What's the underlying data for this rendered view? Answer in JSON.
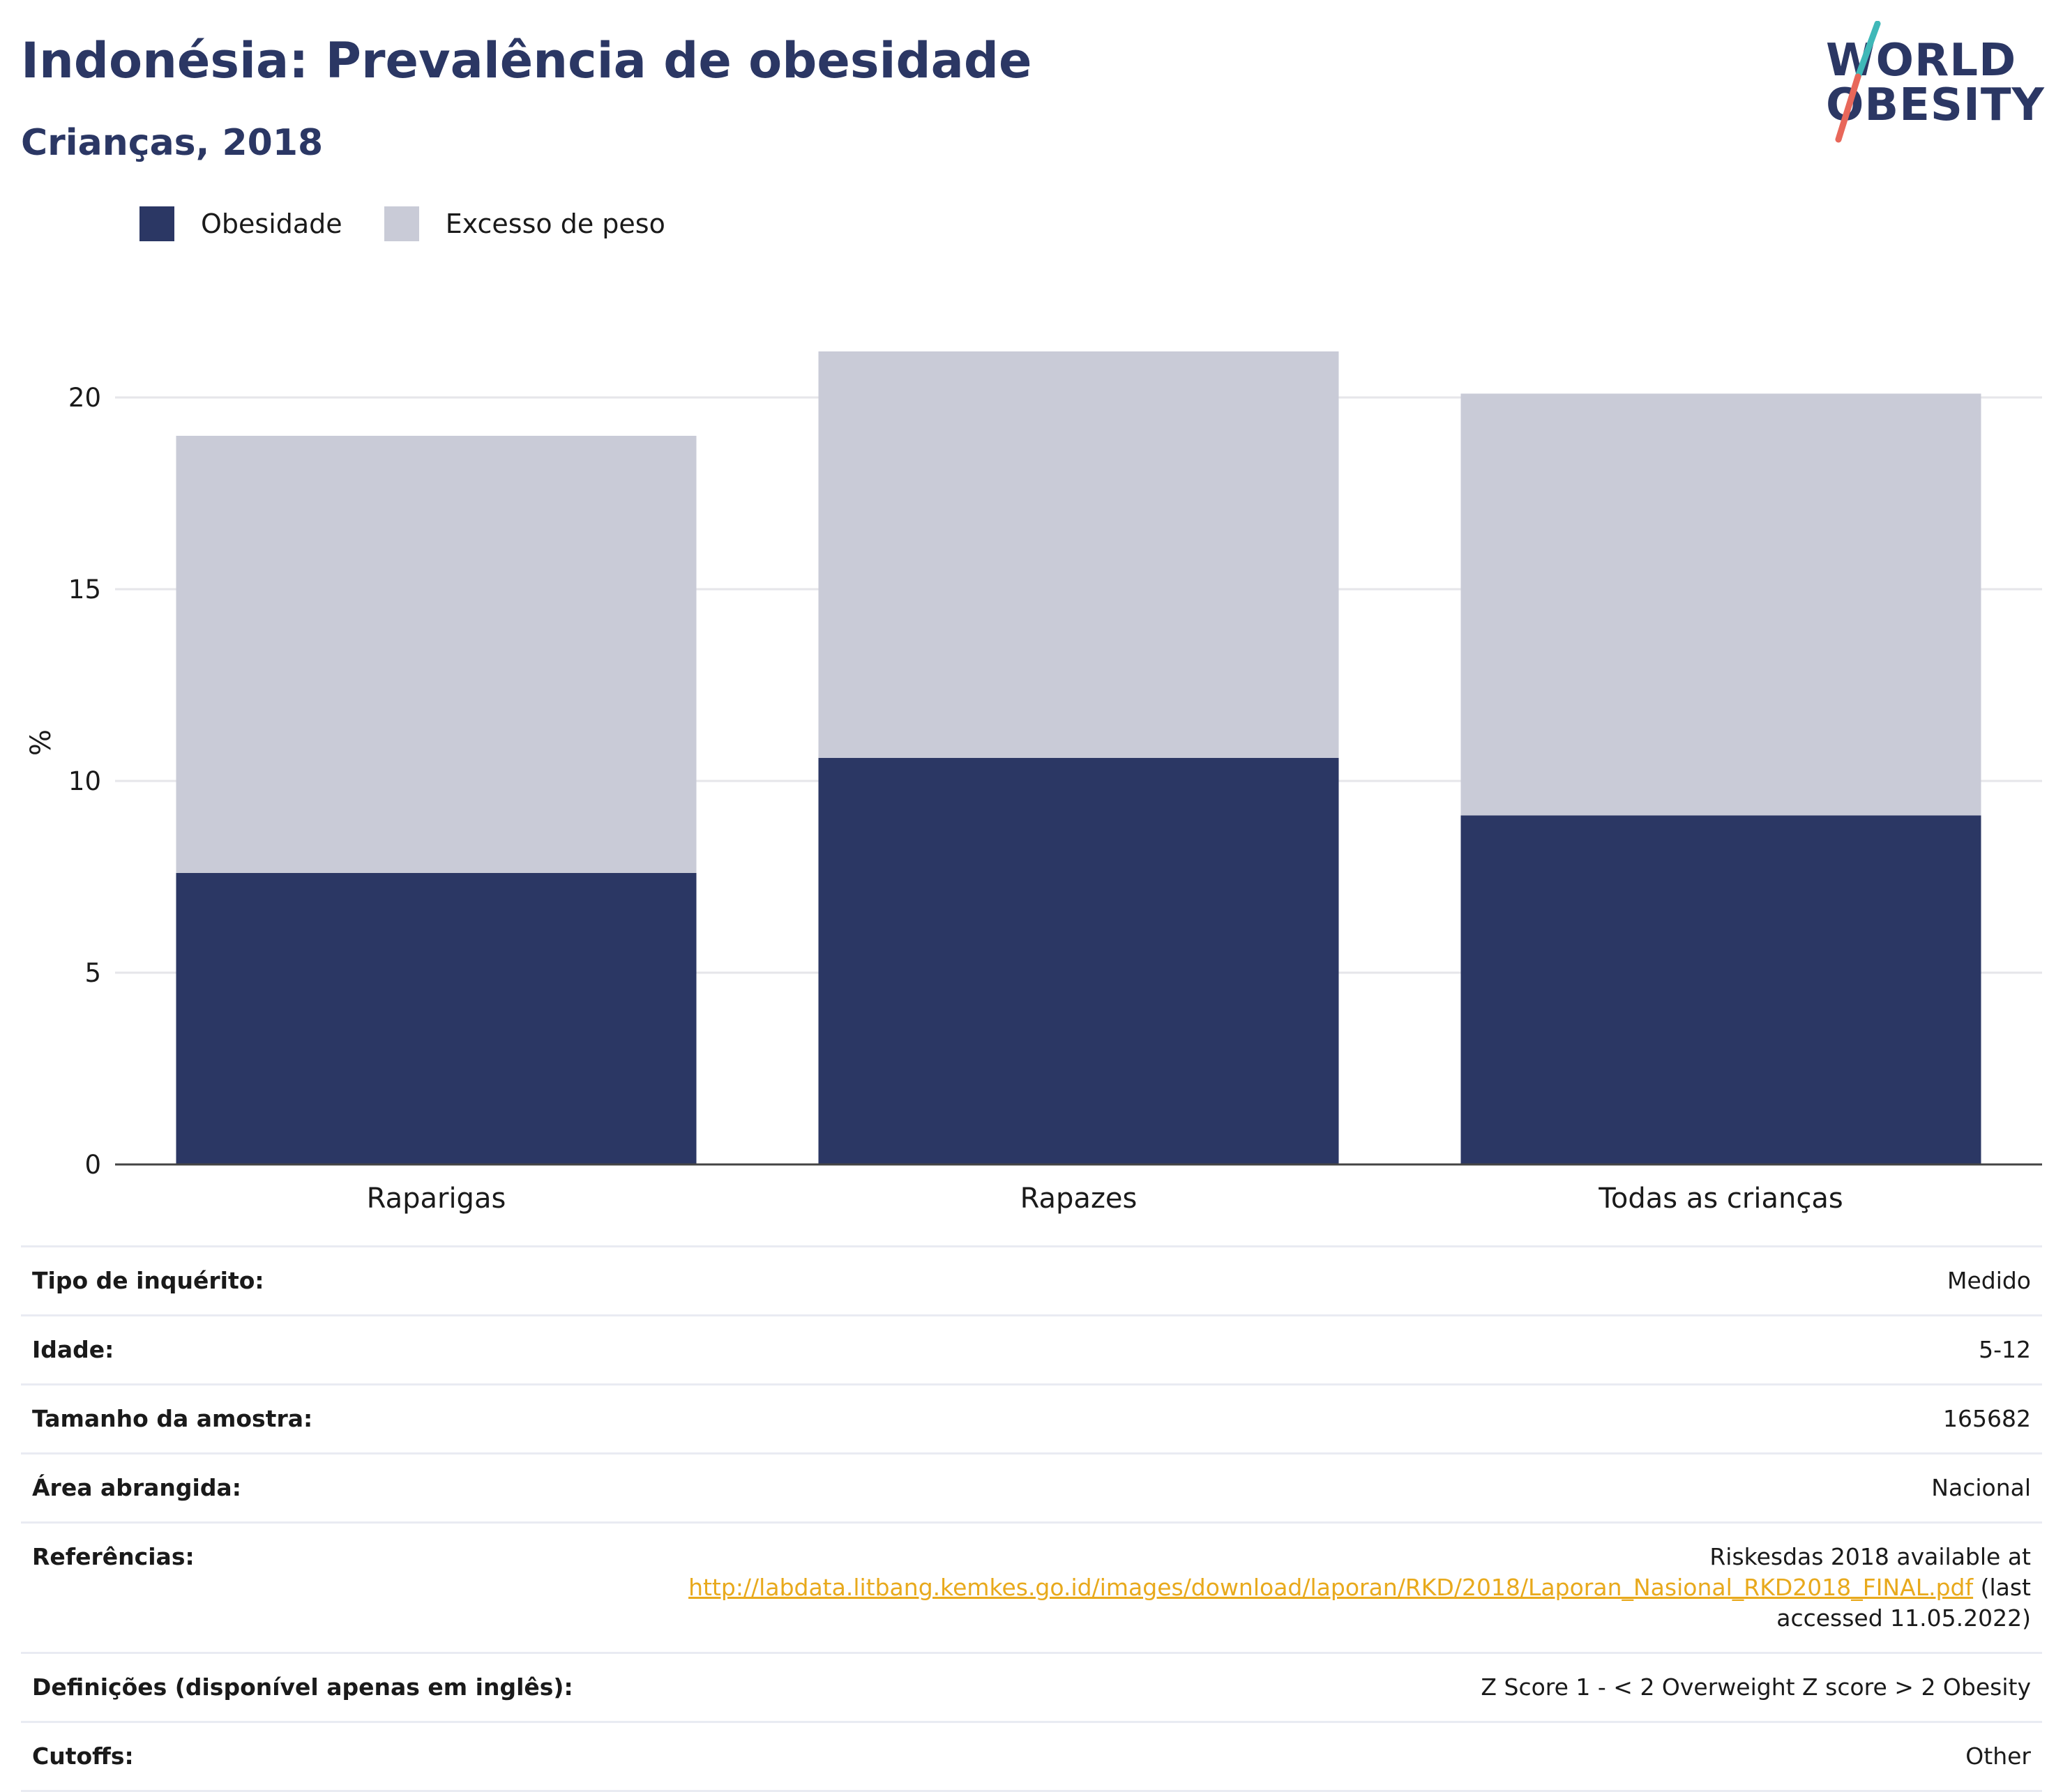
{
  "header": {
    "title": "Indonésia: Prevalência de obesidade",
    "subtitle": "Crianças, 2018"
  },
  "logo": {
    "line1": "WORLD",
    "line2": "OBESITY",
    "colors": {
      "text": "#2b3764",
      "slash_top": "#3fb8b8",
      "slash_bottom": "#e8675a"
    }
  },
  "legend": [
    {
      "label": "Obesidade",
      "color": "#2b3764"
    },
    {
      "label": "Excesso de peso",
      "color": "#c9cbd7"
    }
  ],
  "chart_data": {
    "type": "bar",
    "stacked": true,
    "categories": [
      "Raparigas",
      "Rapazes",
      "Todas as crianças"
    ],
    "series": [
      {
        "name": "Obesidade",
        "values": [
          7.6,
          10.6,
          9.1
        ],
        "color": "#2b3764"
      },
      {
        "name": "Excesso de peso",
        "values": [
          11.4,
          10.6,
          11.0
        ],
        "color": "#c9cbd7"
      }
    ],
    "ylabel": "%",
    "ylim": [
      0,
      22
    ],
    "yticks": [
      0,
      5,
      10,
      15,
      20
    ],
    "grid": true,
    "legend_position": "top-left"
  },
  "details": [
    {
      "label": "Tipo de inquérito:",
      "value": "Medido"
    },
    {
      "label": "Idade:",
      "value": "5-12"
    },
    {
      "label": "Tamanho da amostra:",
      "value": "165682"
    },
    {
      "label": "Área abrangida:",
      "value": "Nacional"
    },
    {
      "label": "Referências:",
      "value_pre": "Riskesdas 2018 available at",
      "link": "http://labdata.litbang.kemkes.go.id/images/download/laporan/RKD/2018/Laporan_Nasional_RKD2018_FINAL.pdf",
      "value_post": "(last accessed 11.05.2022)"
    },
    {
      "label": "Definições (disponível apenas em inglês):",
      "value": "Z Score 1 - < 2 Overweight Z score > 2 Obesity"
    },
    {
      "label": "Cutoffs:",
      "value": "Other"
    }
  ]
}
